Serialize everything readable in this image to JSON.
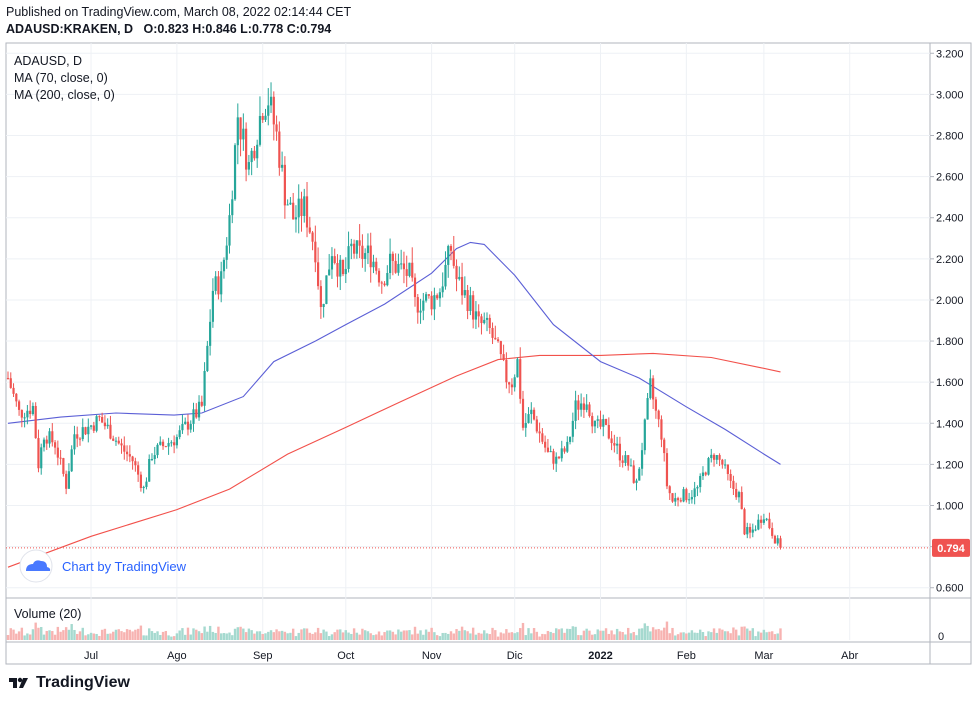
{
  "header": {
    "published": "Published on TradingView.com, March 08, 2022 02:14:44 CET",
    "symbol_line": "ADAUSD:KRAKEN, D",
    "ohlc": {
      "O": "0.823",
      "H": "0.846",
      "L": "0.778",
      "C": "0.794"
    }
  },
  "legend": {
    "symbol": "ADAUSD, D",
    "ma70": "MA (70, close, 0)",
    "ma200": "MA (200, close, 0)"
  },
  "volume": {
    "label": "Volume (20)",
    "zero_label": "0"
  },
  "watermark": {
    "text": "Chart by TradingView"
  },
  "footer": {
    "brand": "TradingView"
  },
  "last_price": {
    "label": "0.794",
    "value": 0.794,
    "color": "#ef5350"
  },
  "colors": {
    "up": "#26a69a",
    "down": "#ef5350",
    "ma70": "#5b5fd6",
    "ma200": "#f2514b",
    "vol_up": "#a5d9cf",
    "vol_down": "#f7b3b1",
    "grid": "#eef1f5"
  },
  "chart_data": {
    "type": "candlestick",
    "y_axis": {
      "min": 0.55,
      "max": 3.25,
      "ticks": [
        "3.200",
        "3.000",
        "2.800",
        "2.600",
        "2.400",
        "2.200",
        "2.000",
        "1.800",
        "1.600",
        "1.400",
        "1.200",
        "1.000",
        "0.800",
        "0.600"
      ]
    },
    "x_axis": {
      "labels": [
        "Jul",
        "Ago",
        "Sep",
        "Oct",
        "Nov",
        "Dic",
        "2022",
        "Feb",
        "Mar",
        "Abr"
      ],
      "label_dates": [
        "2021-07-01",
        "2021-08-01",
        "2021-09-01",
        "2021-10-01",
        "2021-11-01",
        "2021-12-01",
        "2022-01-01",
        "2022-02-01",
        "2022-03-01",
        "2022-04-01"
      ],
      "start_date": "2021-06-01",
      "end_date": "2022-04-30"
    },
    "series": [
      {
        "name": "ADAUSD",
        "ohlc_anchor_closes": [
          [
            "2021-06-01",
            1.62
          ],
          [
            "2021-06-05",
            1.45
          ],
          [
            "2021-06-10",
            1.48
          ],
          [
            "2021-06-12",
            1.2
          ],
          [
            "2021-06-14",
            1.35
          ],
          [
            "2021-06-18",
            1.3
          ],
          [
            "2021-06-22",
            1.1
          ],
          [
            "2021-06-25",
            1.35
          ],
          [
            "2021-06-30",
            1.38
          ],
          [
            "2021-07-04",
            1.42
          ],
          [
            "2021-07-08",
            1.36
          ],
          [
            "2021-07-12",
            1.28
          ],
          [
            "2021-07-16",
            1.22
          ],
          [
            "2021-07-20",
            1.08
          ],
          [
            "2021-07-23",
            1.25
          ],
          [
            "2021-07-28",
            1.3
          ],
          [
            "2021-08-01",
            1.33
          ],
          [
            "2021-08-05",
            1.4
          ],
          [
            "2021-08-10",
            1.48
          ],
          [
            "2021-08-14",
            2.05
          ],
          [
            "2021-08-17",
            2.1
          ],
          [
            "2021-08-20",
            2.4
          ],
          [
            "2021-08-23",
            2.9
          ],
          [
            "2021-08-27",
            2.65
          ],
          [
            "2021-09-01",
            2.95
          ],
          [
            "2021-09-03",
            2.98
          ],
          [
            "2021-09-06",
            2.8
          ],
          [
            "2021-09-09",
            2.52
          ],
          [
            "2021-09-12",
            2.4
          ],
          [
            "2021-09-16",
            2.45
          ],
          [
            "2021-09-20",
            2.25
          ],
          [
            "2021-09-22",
            1.95
          ],
          [
            "2021-09-26",
            2.25
          ],
          [
            "2021-09-30",
            2.1
          ],
          [
            "2021-10-03",
            2.25
          ],
          [
            "2021-10-06",
            2.22
          ],
          [
            "2021-10-10",
            2.22
          ],
          [
            "2021-10-14",
            2.1
          ],
          [
            "2021-10-17",
            2.18
          ],
          [
            "2021-10-21",
            2.15
          ],
          [
            "2021-10-24",
            2.12
          ],
          [
            "2021-10-26",
            1.98
          ],
          [
            "2021-10-29",
            2.0
          ],
          [
            "2021-11-01",
            2.0
          ],
          [
            "2021-11-04",
            2.05
          ],
          [
            "2021-11-08",
            2.25
          ],
          [
            "2021-11-10",
            2.1
          ],
          [
            "2021-11-12",
            2.05
          ],
          [
            "2021-11-15",
            1.98
          ],
          [
            "2021-11-18",
            1.88
          ],
          [
            "2021-11-20",
            1.88
          ],
          [
            "2021-11-22",
            1.85
          ],
          [
            "2021-11-25",
            1.75
          ],
          [
            "2021-11-28",
            1.62
          ],
          [
            "2021-11-30",
            1.6
          ],
          [
            "2021-12-02",
            1.7
          ],
          [
            "2021-12-04",
            1.38
          ],
          [
            "2021-12-07",
            1.45
          ],
          [
            "2021-12-10",
            1.35
          ],
          [
            "2021-12-13",
            1.25
          ],
          [
            "2021-12-16",
            1.22
          ],
          [
            "2021-12-20",
            1.28
          ],
          [
            "2021-12-23",
            1.48
          ],
          [
            "2021-12-27",
            1.52
          ],
          [
            "2021-12-30",
            1.38
          ],
          [
            "2022-01-02",
            1.38
          ],
          [
            "2022-01-05",
            1.33
          ],
          [
            "2022-01-08",
            1.25
          ],
          [
            "2022-01-11",
            1.2
          ],
          [
            "2022-01-14",
            1.1
          ],
          [
            "2022-01-17",
            1.38
          ],
          [
            "2022-01-19",
            1.58
          ],
          [
            "2022-01-21",
            1.45
          ],
          [
            "2022-01-23",
            1.35
          ],
          [
            "2022-01-25",
            1.1
          ],
          [
            "2022-01-27",
            1.02
          ],
          [
            "2022-01-30",
            1.05
          ],
          [
            "2022-02-02",
            1.05
          ],
          [
            "2022-02-05",
            1.08
          ],
          [
            "2022-02-08",
            1.18
          ],
          [
            "2022-02-11",
            1.25
          ],
          [
            "2022-02-14",
            1.2
          ],
          [
            "2022-02-17",
            1.1
          ],
          [
            "2022-02-20",
            1.05
          ],
          [
            "2022-02-22",
            0.88
          ],
          [
            "2022-02-24",
            0.86
          ],
          [
            "2022-02-27",
            0.92
          ],
          [
            "2022-03-01",
            0.96
          ],
          [
            "2022-03-03",
            0.9
          ],
          [
            "2022-03-05",
            0.84
          ],
          [
            "2022-03-07",
            0.794
          ]
        ]
      },
      {
        "name": "MA (70, close, 0)",
        "points": [
          [
            "2021-06-01",
            1.4
          ],
          [
            "2021-06-20",
            1.43
          ],
          [
            "2021-07-10",
            1.45
          ],
          [
            "2021-07-31",
            1.44
          ],
          [
            "2021-08-10",
            1.45
          ],
          [
            "2021-08-25",
            1.53
          ],
          [
            "2021-09-05",
            1.7
          ],
          [
            "2021-09-20",
            1.8
          ],
          [
            "2021-10-01",
            1.88
          ],
          [
            "2021-10-15",
            1.98
          ],
          [
            "2021-11-01",
            2.13
          ],
          [
            "2021-11-10",
            2.25
          ],
          [
            "2021-11-15",
            2.28
          ],
          [
            "2021-11-20",
            2.27
          ],
          [
            "2021-12-01",
            2.12
          ],
          [
            "2021-12-15",
            1.88
          ],
          [
            "2022-01-01",
            1.7
          ],
          [
            "2022-01-15",
            1.62
          ],
          [
            "2022-02-01",
            1.48
          ],
          [
            "2022-02-15",
            1.37
          ],
          [
            "2022-03-01",
            1.25
          ],
          [
            "2022-03-07",
            1.2
          ]
        ]
      },
      {
        "name": "MA (200, close, 0)",
        "points": [
          [
            "2021-06-01",
            0.7
          ],
          [
            "2021-07-01",
            0.85
          ],
          [
            "2021-08-01",
            0.98
          ],
          [
            "2021-08-20",
            1.08
          ],
          [
            "2021-09-10",
            1.25
          ],
          [
            "2021-10-01",
            1.38
          ],
          [
            "2021-10-20",
            1.5
          ],
          [
            "2021-11-10",
            1.63
          ],
          [
            "2021-11-25",
            1.71
          ],
          [
            "2021-12-10",
            1.73
          ],
          [
            "2022-01-01",
            1.73
          ],
          [
            "2022-01-20",
            1.74
          ],
          [
            "2022-02-10",
            1.72
          ],
          [
            "2022-02-28",
            1.67
          ],
          [
            "2022-03-07",
            1.65
          ]
        ]
      }
    ]
  }
}
